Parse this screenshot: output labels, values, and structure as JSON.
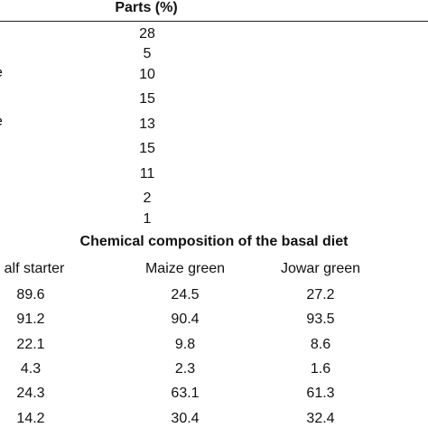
{
  "parts_table": {
    "header": "Parts (%)",
    "values": [
      "28",
      "5",
      "10",
      "15",
      "13",
      "15",
      "11",
      "2",
      "1"
    ],
    "cut_labels": [
      "e",
      "e"
    ]
  },
  "chemical_table": {
    "title": "Chemical composition of the basal diet",
    "columns": [
      "alf starter",
      "Maize green",
      "Jowar green"
    ],
    "rows": [
      [
        "89.6",
        "24.5",
        "27.2"
      ],
      [
        "91.2",
        "90.4",
        "93.5"
      ],
      [
        "22.1",
        "9.8",
        "8.6"
      ],
      [
        "4.3",
        "2.3",
        "1.6"
      ],
      [
        "24.3",
        "63.1",
        "61.3"
      ],
      [
        "14.2",
        "30.4",
        "32.4"
      ]
    ]
  }
}
